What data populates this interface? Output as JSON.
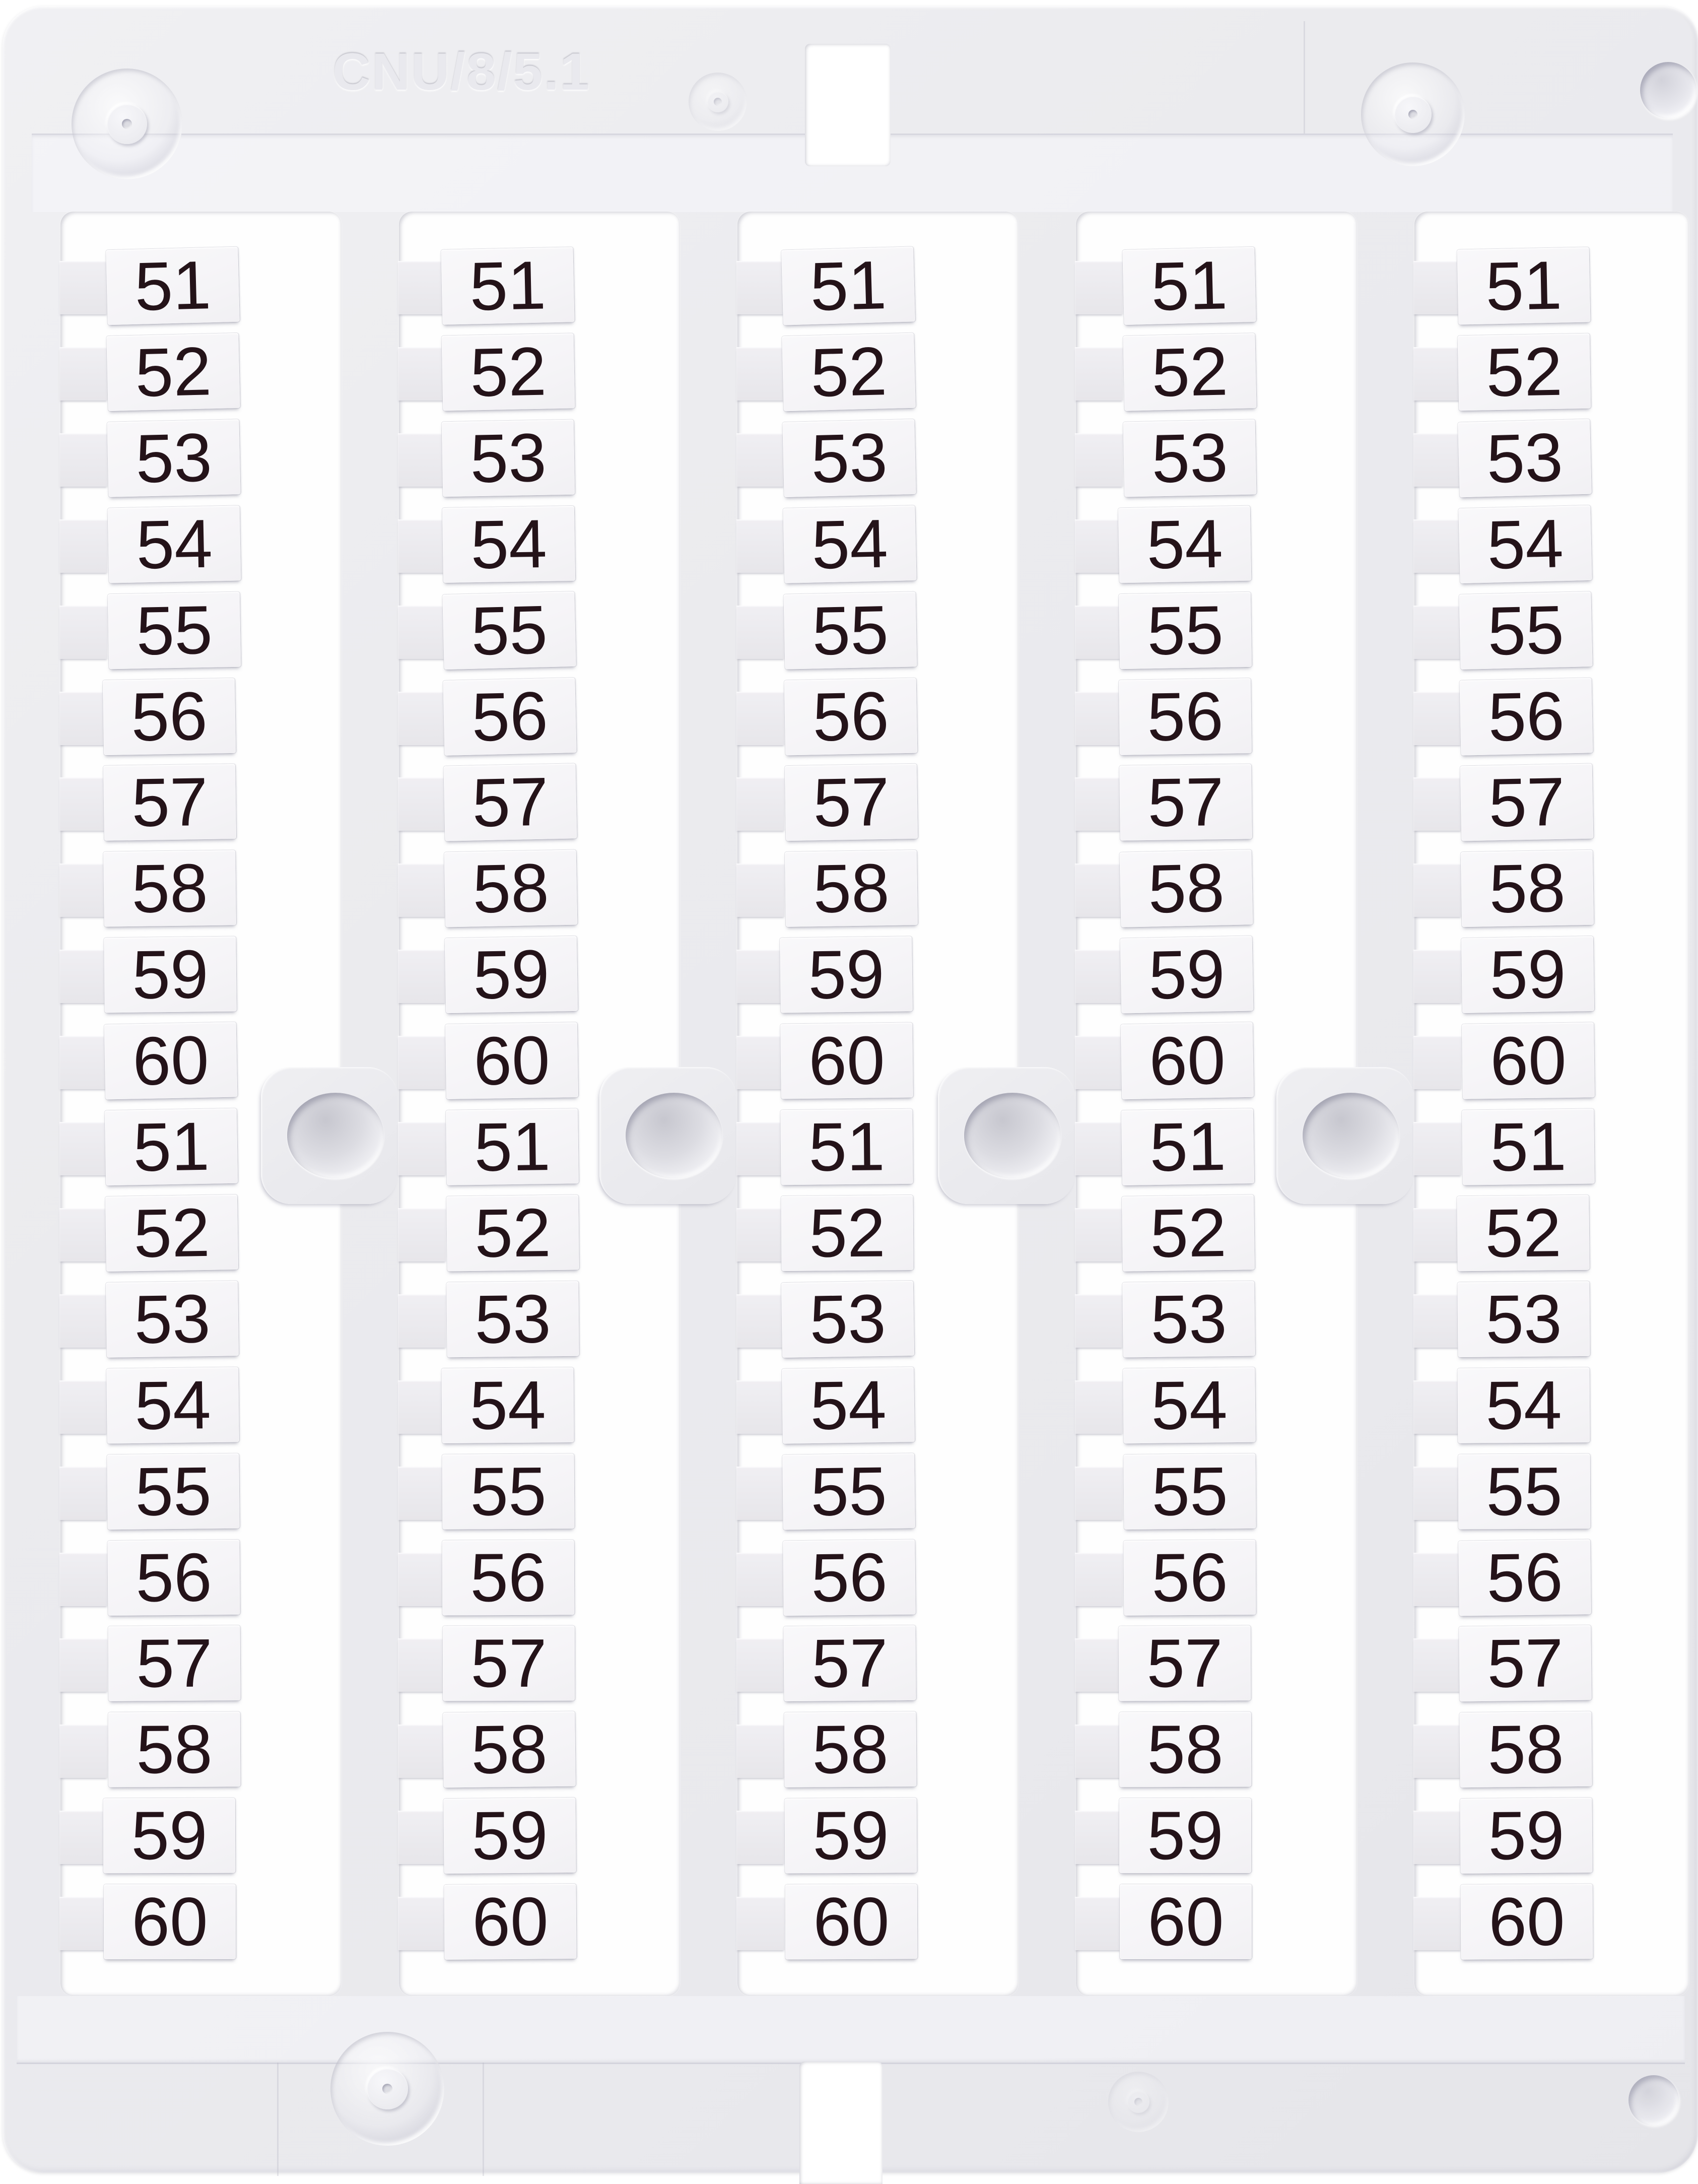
{
  "embossed_code": "CNU/8/5.1",
  "card": {
    "kind": "terminal-block marker card with snap-off numbered tags",
    "columns": [
      {
        "tags": [
          "51",
          "52",
          "53",
          "54",
          "55",
          "56",
          "57",
          "58",
          "59",
          "60",
          "51",
          "52",
          "53",
          "54",
          "55",
          "56",
          "57",
          "58",
          "59",
          "60"
        ]
      },
      {
        "tags": [
          "51",
          "52",
          "53",
          "54",
          "55",
          "56",
          "57",
          "58",
          "59",
          "60",
          "51",
          "52",
          "53",
          "54",
          "55",
          "56",
          "57",
          "58",
          "59",
          "60"
        ]
      },
      {
        "tags": [
          "51",
          "52",
          "53",
          "54",
          "55",
          "56",
          "57",
          "58",
          "59",
          "60",
          "51",
          "52",
          "53",
          "54",
          "55",
          "56",
          "57",
          "58",
          "59",
          "60"
        ]
      },
      {
        "tags": [
          "51",
          "52",
          "53",
          "54",
          "55",
          "56",
          "57",
          "58",
          "59",
          "60",
          "51",
          "52",
          "53",
          "54",
          "55",
          "56",
          "57",
          "58",
          "59",
          "60"
        ]
      },
      {
        "tags": [
          "51",
          "52",
          "53",
          "54",
          "55",
          "56",
          "57",
          "58",
          "59",
          "60",
          "51",
          "52",
          "53",
          "54",
          "55",
          "56",
          "57",
          "58",
          "59",
          "60"
        ]
      }
    ]
  }
}
